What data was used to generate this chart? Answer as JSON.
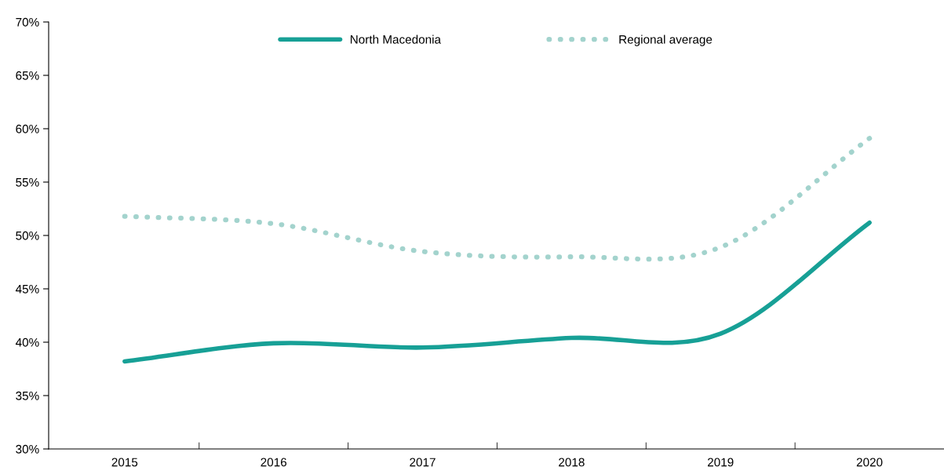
{
  "chart_data": {
    "type": "line",
    "categories": [
      "2015",
      "2016",
      "2017",
      "2018",
      "2019",
      "2020"
    ],
    "series": [
      {
        "name": "North Macedonia",
        "color": "#17a096",
        "line_style": "solid",
        "values": [
          38.2,
          39.9,
          39.5,
          40.4,
          40.8,
          51.2
        ]
      },
      {
        "name": "Regional average",
        "color": "#a3d3cd",
        "line_style": "dotted",
        "values": [
          51.8,
          51.1,
          48.5,
          48.0,
          48.9,
          59.1
        ]
      }
    ],
    "ylim": [
      30,
      70
    ],
    "yticks": [
      {
        "value": 30,
        "label": "30%"
      },
      {
        "value": 35,
        "label": "35%"
      },
      {
        "value": 40,
        "label": "40%"
      },
      {
        "value": 45,
        "label": "45%"
      },
      {
        "value": 50,
        "label": "50%"
      },
      {
        "value": 55,
        "label": "55%"
      },
      {
        "value": 60,
        "label": "60%"
      },
      {
        "value": 65,
        "label": "65%"
      },
      {
        "value": 70,
        "label": "70%"
      }
    ],
    "grid": false,
    "legend": "top",
    "marker": "none"
  }
}
